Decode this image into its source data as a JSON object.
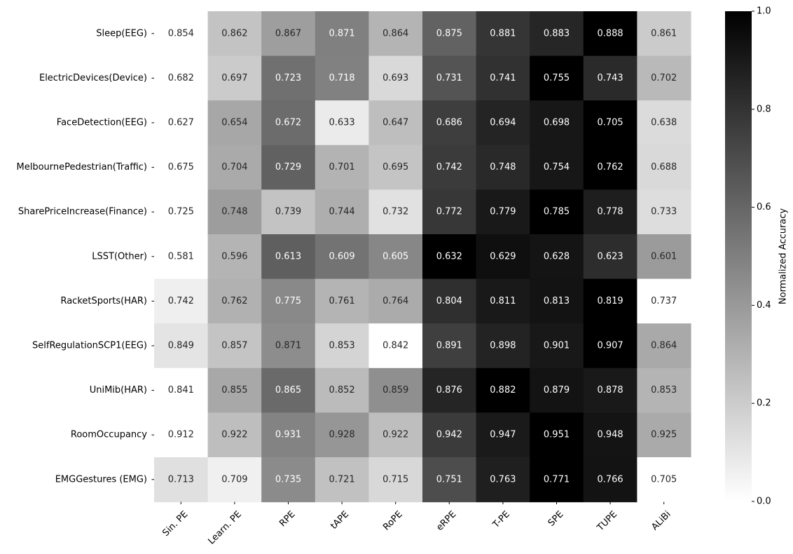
{
  "chart_data": {
    "type": "heatmap",
    "colormap": "Greys (white = 0, black = 1)",
    "normalization": "per row, min-max",
    "categories_x": [
      "Sin. PE",
      "Learn. PE",
      "RPE",
      "tAPE",
      "RoPE",
      "eRPE",
      "T-PE",
      "SPE",
      "TUPE",
      "ALiBi"
    ],
    "categories_y": [
      "Sleep(EEG)",
      "ElectricDevices(Device)",
      "FaceDetection(EEG)",
      "MelbournePedestrian(Traffic)",
      "SharePriceIncrease(Finance)",
      "LSST(Other)",
      "RacketSports(HAR)",
      "SelfRegulationSCP1(EEG)",
      "UniMib(HAR)",
      "RoomOccupancy",
      "EMGGestures (EMG)"
    ],
    "values": [
      [
        0.854,
        0.862,
        0.867,
        0.871,
        0.864,
        0.875,
        0.881,
        0.883,
        0.888,
        0.861
      ],
      [
        0.682,
        0.697,
        0.723,
        0.718,
        0.693,
        0.731,
        0.741,
        0.755,
        0.743,
        0.702
      ],
      [
        0.627,
        0.654,
        0.672,
        0.633,
        0.647,
        0.686,
        0.694,
        0.698,
        0.705,
        0.638
      ],
      [
        0.675,
        0.704,
        0.729,
        0.701,
        0.695,
        0.742,
        0.748,
        0.754,
        0.762,
        0.688
      ],
      [
        0.725,
        0.748,
        0.739,
        0.744,
        0.732,
        0.772,
        0.779,
        0.785,
        0.778,
        0.733
      ],
      [
        0.581,
        0.596,
        0.613,
        0.609,
        0.605,
        0.632,
        0.629,
        0.628,
        0.623,
        0.601
      ],
      [
        0.742,
        0.762,
        0.775,
        0.761,
        0.764,
        0.804,
        0.811,
        0.813,
        0.819,
        0.737
      ],
      [
        0.849,
        0.857,
        0.871,
        0.853,
        0.842,
        0.891,
        0.898,
        0.901,
        0.907,
        0.864
      ],
      [
        0.841,
        0.855,
        0.865,
        0.852,
        0.859,
        0.876,
        0.882,
        0.879,
        0.878,
        0.853
      ],
      [
        0.912,
        0.922,
        0.931,
        0.928,
        0.922,
        0.942,
        0.947,
        0.951,
        0.948,
        0.925
      ],
      [
        0.713,
        0.709,
        0.735,
        0.721,
        0.715,
        0.751,
        0.763,
        0.771,
        0.766,
        0.705
      ]
    ],
    "colorbar": {
      "label": "Normalized Accuracy",
      "range": [
        0.0,
        1.0
      ],
      "ticks": [
        "0.0",
        "0.2",
        "0.4",
        "0.6",
        "0.8",
        "1.0"
      ]
    },
    "title": "",
    "xlabel": "",
    "ylabel": ""
  }
}
